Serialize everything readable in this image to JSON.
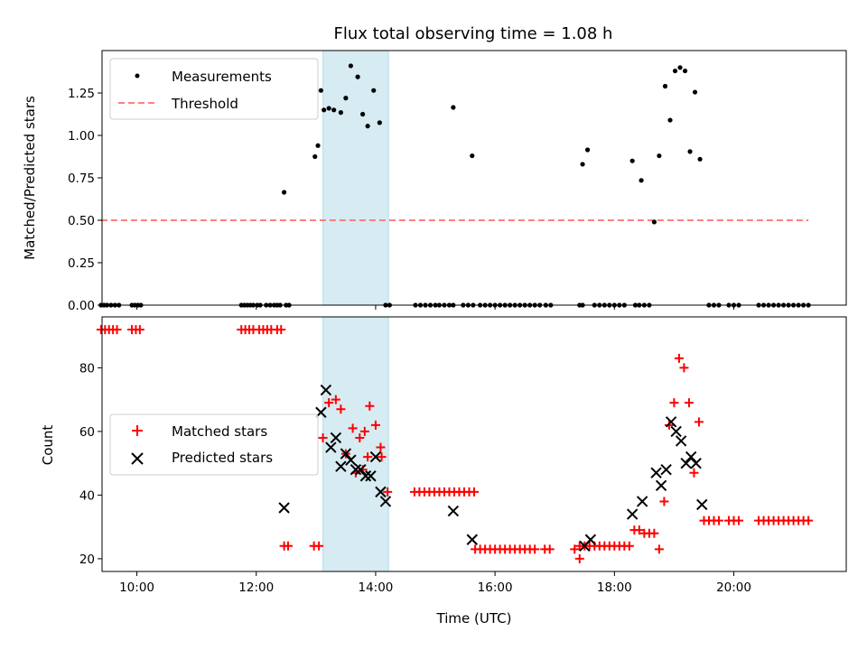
{
  "title": "Flux total observing time = 1.08 h",
  "chart_data": [
    {
      "type": "scatter",
      "ylabel": "Matched/Predicted stars",
      "xlim": [
        "09:25",
        "21:53"
      ],
      "ylim": [
        0,
        1.5
      ],
      "yticks": [
        "0.00",
        "0.25",
        "0.50",
        "0.75",
        "1.00",
        "1.25"
      ],
      "shaded_span": [
        "13:07",
        "14:13"
      ],
      "grid": false,
      "legend": "top-left",
      "series": [
        {
          "name": "Measurements",
          "marker": "dot",
          "color": "#000000",
          "x": [
            "09:24",
            "09:27",
            "09:30",
            "09:34",
            "09:38",
            "09:42",
            "09:55",
            "09:58",
            "10:01",
            "10:04",
            "11:45",
            "11:48",
            "11:51",
            "11:54",
            "11:57",
            "12:01",
            "12:04",
            "12:10",
            "12:14",
            "12:18",
            "12:21",
            "12:24",
            "12:30",
            "12:33",
            "12:28",
            "12:59",
            "13:02",
            "13:05",
            "13:08",
            "13:13",
            "13:18",
            "13:25",
            "13:30",
            "13:35",
            "13:42",
            "13:47",
            "13:52",
            "13:58",
            "14:04",
            "14:10",
            "14:14",
            "14:40",
            "14:45",
            "14:50",
            "14:55",
            "15:00",
            "15:04",
            "15:09",
            "15:14",
            "15:18",
            "15:28",
            "15:33",
            "15:38",
            "15:18",
            "15:37",
            "15:45",
            "15:50",
            "15:55",
            "16:00",
            "16:05",
            "16:10",
            "16:15",
            "16:20",
            "16:25",
            "16:30",
            "16:35",
            "16:40",
            "16:45",
            "16:51",
            "16:56",
            "17:25",
            "17:28",
            "17:40",
            "17:45",
            "17:50",
            "17:55",
            "18:00",
            "18:05",
            "18:10",
            "18:21",
            "18:25",
            "18:30",
            "18:35",
            "17:28",
            "17:33",
            "18:18",
            "18:27",
            "18:40",
            "18:45",
            "18:51",
            "18:56",
            "19:01",
            "19:06",
            "19:11",
            "19:16",
            "19:21",
            "19:26",
            "19:35",
            "19:40",
            "19:45",
            "19:55",
            "20:00",
            "20:05",
            "20:25",
            "20:30",
            "20:35",
            "20:40",
            "20:45",
            "20:50",
            "20:55",
            "21:00",
            "21:05",
            "21:10",
            "21:15"
          ],
          "y": [
            0,
            0,
            0,
            0,
            0,
            0,
            0,
            0,
            0,
            0,
            0,
            0,
            0,
            0,
            0,
            0,
            0,
            0,
            0,
            0,
            0,
            0,
            0,
            0,
            0.665,
            0.875,
            0.94,
            1.265,
            1.15,
            1.16,
            1.15,
            1.135,
            1.22,
            1.41,
            1.345,
            1.125,
            1.055,
            1.265,
            1.075,
            0,
            0,
            0,
            0,
            0,
            0,
            0,
            0,
            0,
            0,
            0,
            0,
            0,
            0,
            1.165,
            0.88,
            0,
            0,
            0,
            0,
            0,
            0,
            0,
            0,
            0,
            0,
            0,
            0,
            0,
            0,
            0,
            0,
            0,
            0,
            0,
            0,
            0,
            0,
            0,
            0,
            0,
            0,
            0,
            0,
            0.83,
            0.915,
            0.85,
            0.735,
            0.49,
            0.88,
            1.29,
            1.09,
            1.38,
            1.4,
            1.38,
            0.905,
            1.255,
            0.86,
            0,
            0,
            0,
            0,
            0,
            0,
            0,
            0,
            0,
            0,
            0,
            0,
            0,
            0,
            0,
            0,
            0
          ]
        },
        {
          "name": "Threshold",
          "style": "dashed",
          "color": "#ff7f7f",
          "x": [
            "09:24",
            "21:15"
          ],
          "y": [
            0.5,
            0.5
          ]
        }
      ]
    },
    {
      "type": "scatter",
      "xlabel": "Time (UTC)",
      "ylabel": "Count",
      "xlim": [
        "09:25",
        "21:53"
      ],
      "ylim": [
        16,
        96
      ],
      "xticks": [
        "10:00",
        "12:00",
        "14:00",
        "16:00",
        "18:00",
        "20:00"
      ],
      "yticks": [
        "20",
        "40",
        "60",
        "80"
      ],
      "shaded_span": [
        "13:07",
        "14:13"
      ],
      "grid": false,
      "legend": "center-left",
      "series": [
        {
          "name": "Matched stars",
          "marker": "plus",
          "color": "#ff0000",
          "x": [
            "09:24",
            "09:28",
            "09:32",
            "09:36",
            "09:40",
            "09:55",
            "09:59",
            "10:03",
            "11:45",
            "11:49",
            "11:53",
            "11:57",
            "12:03",
            "12:07",
            "12:11",
            "12:15",
            "12:21",
            "12:25",
            "12:28",
            "12:32",
            "12:58",
            "13:03",
            "13:07",
            "13:13",
            "13:20",
            "13:25",
            "13:30",
            "13:37",
            "13:44",
            "13:49",
            "13:54",
            "14:00",
            "14:06",
            "14:12",
            "13:40",
            "13:47",
            "13:52",
            "14:05",
            "14:39",
            "14:44",
            "14:49",
            "14:54",
            "14:59",
            "15:04",
            "15:09",
            "15:14",
            "15:19",
            "15:24",
            "15:29",
            "15:34",
            "15:39",
            "15:40",
            "15:45",
            "15:50",
            "15:55",
            "16:00",
            "16:05",
            "16:10",
            "16:15",
            "16:20",
            "16:25",
            "16:30",
            "16:35",
            "16:40",
            "16:50",
            "16:55",
            "17:20",
            "17:25",
            "17:30",
            "17:35",
            "17:40",
            "17:45",
            "17:50",
            "17:55",
            "18:00",
            "18:05",
            "18:10",
            "18:15",
            "17:25",
            "18:20",
            "18:25",
            "18:30",
            "18:35",
            "18:40",
            "18:45",
            "18:50",
            "18:55",
            "19:00",
            "19:05",
            "19:10",
            "19:15",
            "19:20",
            "19:25",
            "19:30",
            "19:35",
            "19:40",
            "19:45",
            "19:55",
            "20:00",
            "20:05",
            "20:25",
            "20:30",
            "20:35",
            "20:40",
            "20:45",
            "20:50",
            "20:55",
            "21:00",
            "21:05",
            "21:10",
            "21:15"
          ],
          "y": [
            92,
            92,
            92,
            92,
            92,
            92,
            92,
            92,
            92,
            92,
            92,
            92,
            92,
            92,
            92,
            92,
            92,
            92,
            24,
            24,
            24,
            24,
            58,
            69,
            70,
            67,
            53,
            61,
            58,
            60,
            68,
            62,
            52,
            41,
            47,
            48,
            52,
            55,
            41,
            41,
            41,
            41,
            41,
            41,
            41,
            41,
            41,
            41,
            41,
            41,
            41,
            23,
            23,
            23,
            23,
            23,
            23,
            23,
            23,
            23,
            23,
            23,
            23,
            23,
            23,
            23,
            23,
            24,
            24,
            24,
            24,
            24,
            24,
            24,
            24,
            24,
            24,
            24,
            20,
            29,
            29,
            28,
            28,
            28,
            23,
            38,
            62,
            69,
            83,
            80,
            69,
            47,
            63,
            32,
            32,
            32,
            32,
            32,
            32,
            32,
            32,
            32,
            32,
            32,
            32,
            32,
            32,
            32,
            32,
            32,
            32
          ]
        },
        {
          "name": "Predicted stars",
          "marker": "x",
          "color": "#000000",
          "x": [
            "12:28",
            "13:05",
            "13:10",
            "13:15",
            "13:20",
            "13:25",
            "13:30",
            "13:35",
            "13:40",
            "13:45",
            "13:50",
            "13:55",
            "14:00",
            "14:05",
            "14:10",
            "15:18",
            "15:37",
            "17:30",
            "17:36",
            "18:18",
            "18:28",
            "18:42",
            "18:47",
            "18:52",
            "18:57",
            "19:02",
            "19:07",
            "19:12",
            "19:17",
            "19:22",
            "19:28"
          ],
          "y": [
            36,
            66,
            73,
            55,
            58,
            49,
            53,
            51,
            48,
            48,
            46,
            46,
            52,
            41,
            38,
            35,
            26,
            24,
            26,
            34,
            38,
            47,
            43,
            48,
            63,
            60,
            57,
            50,
            52,
            50,
            37
          ]
        }
      ]
    }
  ]
}
